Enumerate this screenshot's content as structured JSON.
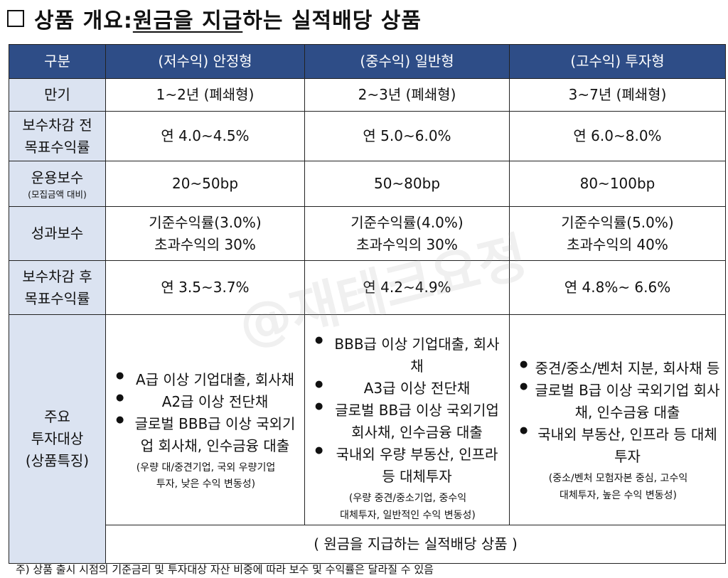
{
  "heading": {
    "prefix": "상품 개요: ",
    "underlined": "원금을 지급",
    "suffix": "하는 실적배당 상품"
  },
  "table": {
    "headers": [
      "구분",
      "(저수익) 안정형",
      "(중수익) 일반형",
      "(고수익) 투자형"
    ],
    "rows": [
      {
        "label": "만기",
        "values": [
          "1~2년 (폐쇄형)",
          "2~3년 (폐쇄형)",
          "3~7년 (폐쇄형)"
        ]
      },
      {
        "label1": "보수차감 전",
        "label2": "목표수익률",
        "values": [
          "연 4.0~4.5%",
          "연 5.0~6.0%",
          "연 6.0~8.0%"
        ]
      },
      {
        "label": "운용보수",
        "sublabel": "(모집금액 대비)",
        "values": [
          "20~50bp",
          "50~80bp",
          "80~100bp"
        ]
      },
      {
        "label": "성과보수",
        "values": [
          {
            "line1": "기준수익률(3.0%)",
            "line2": "초과수익의 30%"
          },
          {
            "line1": "기준수익률(4.0%)",
            "line2": "초과수익의 30%"
          },
          {
            "line1": "기준수익률(5.0%)",
            "line2": "초과수익의 40%"
          }
        ]
      },
      {
        "label1": "보수차감 후",
        "label2": "목표수익률",
        "values": [
          "연 3.5~3.7%",
          "연 4.2~4.9%",
          "연 4.8%~ 6.6%"
        ]
      }
    ],
    "investment": {
      "label1": "주요",
      "label2": "투자대상",
      "label3": "(상품특징)",
      "columns": [
        {
          "bullets": [
            "A급 이상 기업대출, 회사채",
            "A2급 이상 전단채",
            "글로벌 BBB급 이상 국외기업 회사채, 인수금융 대출"
          ],
          "note_line1": "(우량 대/중견기업, 국외 우량기업",
          "note_line2": "투자, 낮은 수익 변동성)"
        },
        {
          "bullets": [
            "BBB급 이상 기업대출, 회사채",
            "A3급 이상 전단채",
            "글로벌 BB급 이상 국외기업 회사채, 인수금융 대출",
            "국내외 우량 부동산, 인프라 등 대체투자"
          ],
          "note_line1": "(우량 중견/중소기업, 중수익",
          "note_line2": "대체투자, 일반적인 수익 변동성)"
        },
        {
          "bullets": [
            "중견/중소/벤처 지분, 회사채 등",
            "글로벌 B급 이상 국외기업 회사채, 인수금융 대출",
            "국내외 부동산, 인프라 등 대체투자"
          ],
          "note_line1": "(중소/벤처 모험자본 중심, 고수익",
          "note_line2": "대체투자, 높은 수익 변동성)"
        }
      ]
    },
    "footer": "( 원금을 지급하는 실적배당 상품 )"
  },
  "footnote": "주) 상품 출시 시점의 기준금리 및 투자대상 자산 비중에 따라 보수 및 수익률은 달라질 수 있음",
  "watermark": "@재테크요정"
}
